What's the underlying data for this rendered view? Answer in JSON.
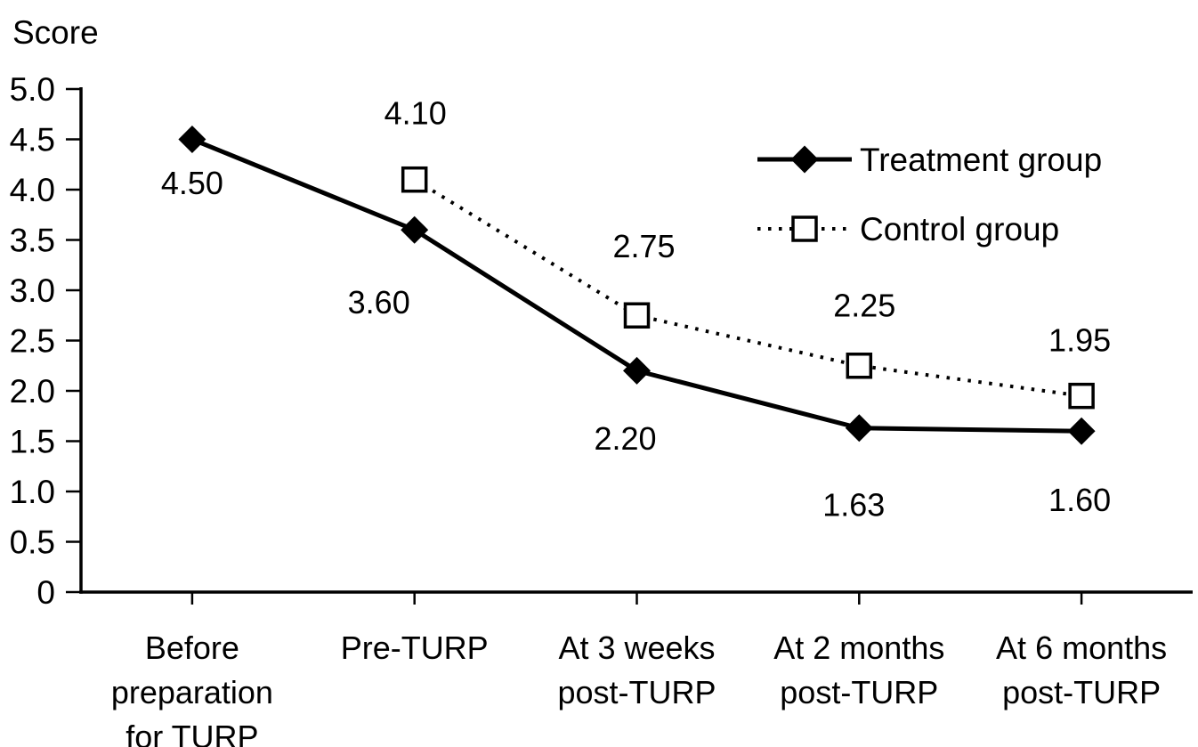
{
  "page": {
    "background": "#ffffff",
    "foreground": "#000000"
  },
  "chart_data": {
    "type": "line",
    "title": "Score",
    "y_axis_label": "Score",
    "xlabel": "",
    "ylabel": "Score",
    "grid": false,
    "x_categories_full": [
      "Before preparation for TURP",
      "Pre-TURP",
      "At 3 weeks post-TURP",
      "At 2 months post-TURP",
      "At 6 months post-TURP"
    ],
    "categories": [
      {
        "lines": [
          "Before",
          "preparation",
          "for TURP"
        ]
      },
      {
        "lines": [
          "Pre-TURP"
        ]
      },
      {
        "lines": [
          "At 3 weeks",
          "post-TURP"
        ]
      },
      {
        "lines": [
          "At 2 months",
          "post-TURP"
        ]
      },
      {
        "lines": [
          "At 6 months",
          "post-TURP"
        ]
      }
    ],
    "y_axis": {
      "min": 0,
      "max": 5,
      "tick_step": 0.5,
      "tick_labels": [
        "0",
        "0.5",
        "1.0",
        "1.5",
        "2.0",
        "2.5",
        "3.0",
        "3.5",
        "4.0",
        "4.5",
        "5.0"
      ]
    },
    "series": [
      {
        "name": "Treatment group",
        "marker": "filled-diamond",
        "line_style": "solid",
        "color": "#000000",
        "start_index": 0,
        "values": [
          4.5,
          3.6,
          2.2,
          1.63,
          1.6
        ],
        "value_labels": [
          "4.50",
          "3.60",
          "2.20",
          "1.63",
          "1.60"
        ]
      },
      {
        "name": "Control group",
        "marker": "open-square",
        "line_style": "dotted",
        "color": "#000000",
        "start_index": 1,
        "values": [
          4.1,
          2.75,
          2.25,
          1.95
        ],
        "value_labels": [
          "4.10",
          "2.75",
          "2.25",
          "1.95"
        ]
      }
    ],
    "legend": {
      "position": "upper-right",
      "entries": [
        "Treatment group",
        "Control group"
      ]
    }
  }
}
